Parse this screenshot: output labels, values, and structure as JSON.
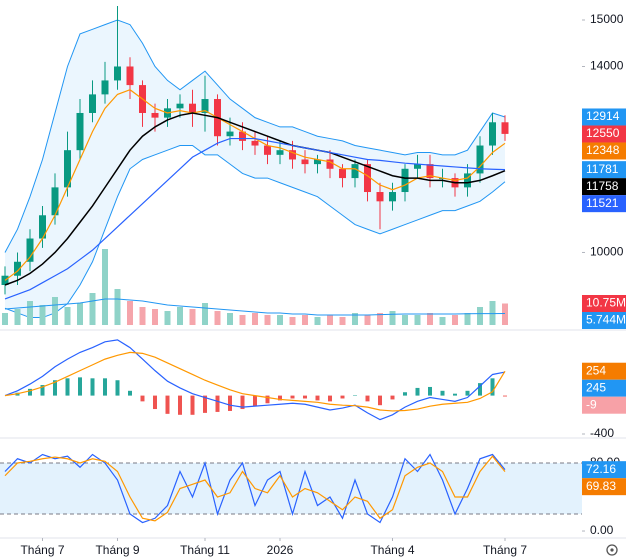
{
  "chart_data": [
    {
      "type": "candlestick",
      "ylim": [
        8440,
        15430
      ],
      "yticks": [
        10000,
        14000,
        15000
      ],
      "up_color": "#089981",
      "down_color": "#f23645",
      "open": [
        9300,
        9500,
        9800,
        10300,
        10800,
        11400,
        12200,
        13000,
        13400,
        13700,
        14000,
        13600,
        13000,
        12900,
        13100,
        13200,
        13000,
        13300,
        12500,
        12600,
        12400,
        12300,
        12100,
        12200,
        12000,
        11900,
        12000,
        11800,
        11600,
        11900,
        11300,
        11100,
        11300,
        11800,
        11900,
        11600,
        11600,
        11400,
        11700,
        12300,
        12800
      ],
      "high": [
        9700,
        10000,
        10500,
        11000,
        11700,
        12600,
        13300,
        13700,
        14100,
        15300,
        14200,
        13700,
        13200,
        13300,
        13400,
        13500,
        13800,
        13400,
        12900,
        12800,
        12600,
        12500,
        12400,
        12400,
        12200,
        12100,
        12200,
        11900,
        12000,
        12000,
        11500,
        11500,
        11900,
        12100,
        12100,
        11800,
        11700,
        11900,
        12500,
        13000,
        12950
      ],
      "low": [
        9100,
        9300,
        9600,
        10100,
        10600,
        11200,
        12000,
        12800,
        13200,
        13500,
        13300,
        12700,
        12600,
        12700,
        12900,
        12700,
        12600,
        12300,
        12300,
        12200,
        12100,
        11900,
        11900,
        11800,
        11700,
        11700,
        11600,
        11400,
        11400,
        11100,
        10500,
        10900,
        11100,
        11600,
        11400,
        11400,
        11200,
        11200,
        11500,
        12100,
        12400
      ],
      "close": [
        9500,
        9800,
        10300,
        10800,
        11400,
        12200,
        13000,
        13400,
        13700,
        14000,
        13600,
        13000,
        12900,
        13100,
        13200,
        13000,
        13300,
        12500,
        12600,
        12400,
        12300,
        12100,
        12200,
        12000,
        11900,
        12000,
        11800,
        11600,
        11900,
        11300,
        11100,
        11300,
        11800,
        11900,
        11600,
        11600,
        11400,
        11700,
        12300,
        12800,
        12550
      ],
      "band": {
        "color": "#2196f3",
        "fill": "#e3f2fd",
        "upper": [
          10000,
          10500,
          11200,
          12000,
          13000,
          14000,
          14700,
          14800,
          14900,
          15000,
          14900,
          14500,
          14000,
          13700,
          13500,
          13700,
          13900,
          13600,
          13300,
          13100,
          12900,
          12800,
          12700,
          12700,
          12600,
          12500,
          12450,
          12400,
          12300,
          12250,
          12200,
          12150,
          12100,
          12150,
          12150,
          12100,
          12100,
          12200,
          12600,
          13000,
          12914
        ],
        "lower": [
          8800,
          8700,
          8600,
          8600,
          8700,
          8900,
          9300,
          9800,
          10500,
          11200,
          11800,
          12000,
          12100,
          12200,
          12300,
          12300,
          12100,
          12100,
          11900,
          11700,
          11600,
          11600,
          11500,
          11400,
          11300,
          11200,
          11000,
          10800,
          10600,
          10500,
          10400,
          10500,
          10600,
          10700,
          10800,
          10900,
          10900,
          11000,
          11100,
          11300,
          11521
        ]
      },
      "series": [
        {
          "color": "#ff9800",
          "values": [
            9400,
            9600,
            9900,
            10300,
            10800,
            11400,
            12000,
            12600,
            13100,
            13400,
            13500,
            13300,
            13100,
            13000,
            13050,
            13000,
            13050,
            12900,
            12750,
            12600,
            12450,
            12300,
            12250,
            12150,
            12050,
            12000,
            11950,
            11800,
            11800,
            11650,
            11450,
            11350,
            11450,
            11600,
            11650,
            11600,
            11550,
            11600,
            11850,
            12150,
            12348
          ]
        },
        {
          "color": "#000000",
          "values": [
            9300,
            9400,
            9550,
            9750,
            10000,
            10300,
            10650,
            11000,
            11400,
            11800,
            12200,
            12500,
            12700,
            12850,
            12950,
            13000,
            12950,
            12900,
            12800,
            12700,
            12600,
            12500,
            12400,
            12300,
            12250,
            12200,
            12150,
            12050,
            11950,
            11850,
            11750,
            11650,
            11600,
            11600,
            11550,
            11550,
            11500,
            11500,
            11550,
            11650,
            11758
          ]
        },
        {
          "color": "#2962ff",
          "values": [
            9000,
            9100,
            9200,
            9350,
            9500,
            9650,
            9850,
            10050,
            10300,
            10550,
            10800,
            11050,
            11300,
            11550,
            11800,
            12050,
            12200,
            12350,
            12450,
            12450,
            12450,
            12400,
            12350,
            12300,
            12250,
            12200,
            12150,
            12100,
            12050,
            12000,
            11980,
            11950,
            11920,
            11900,
            11880,
            11860,
            11840,
            11820,
            11800,
            11790,
            11781
          ]
        }
      ],
      "last_labels": [
        {
          "value": 12914,
          "color": "#2196f3"
        },
        {
          "value": 12550,
          "color": "#f23645"
        },
        {
          "value": 12348,
          "color": "#f57c00"
        },
        {
          "value": 11781,
          "color": "#2196f3"
        },
        {
          "value": 11758,
          "color": "#000000"
        },
        {
          "value": 11521,
          "color": "#2962ff"
        }
      ],
      "volume": {
        "ylim": [
          0,
          40
        ],
        "up_color": "#8fd3c8",
        "down_color": "#f5a5ab",
        "values": [
          6,
          8,
          12,
          10,
          14,
          9,
          11,
          16,
          38,
          18,
          12,
          9,
          8,
          7,
          9,
          8,
          11,
          7,
          6,
          5,
          6,
          5,
          5,
          4,
          5,
          4,
          5,
          4,
          6,
          5,
          6,
          7,
          5,
          5,
          6,
          4,
          5,
          6,
          9,
          12,
          10.75
        ],
        "ma": {
          "color": "#2196f3",
          "values": [
            8,
            8.5,
            9,
            9.5,
            10,
            10.5,
            11,
            12,
            13,
            13,
            12.5,
            12,
            11,
            10,
            9.5,
            9,
            8.5,
            8,
            7.5,
            7,
            6.5,
            6,
            6,
            5.5,
            5.5,
            5,
            5,
            5,
            5,
            5,
            5.2,
            5.4,
            5.5,
            5.5,
            5.5,
            5.5,
            5.5,
            5.6,
            5.7,
            5.7,
            5.744
          ]
        },
        "last_labels": [
          {
            "value": 10.75,
            "label": "10.75M",
            "color": "#f23645"
          },
          {
            "value": 5.744,
            "label": "5.744M",
            "color": "#2196f3"
          }
        ]
      }
    },
    {
      "type": "macd",
      "ylim": [
        -400,
        600
      ],
      "yticks": [
        -400
      ],
      "histogram": {
        "up_color": "#26a69a",
        "down_color": "#ef5350",
        "values": [
          0,
          30,
          70,
          110,
          160,
          180,
          190,
          180,
          180,
          160,
          50,
          -60,
          -140,
          -190,
          -200,
          -200,
          -180,
          -170,
          -160,
          -140,
          -110,
          -80,
          -50,
          -30,
          -30,
          -50,
          -60,
          -30,
          5,
          -60,
          -100,
          -40,
          35,
          80,
          90,
          50,
          20,
          50,
          130,
          180,
          -9
        ]
      },
      "series": [
        {
          "color": "#2962ff",
          "values": [
            0,
            50,
            120,
            200,
            300,
            380,
            450,
            500,
            560,
            580,
            500,
            380,
            260,
            150,
            80,
            20,
            -20,
            -60,
            -100,
            -120,
            -110,
            -100,
            -90,
            -80,
            -90,
            -120,
            -150,
            -130,
            -100,
            -180,
            -250,
            -200,
            -120,
            -60,
            -20,
            -40,
            -60,
            -20,
            100,
            220,
            245
          ]
        },
        {
          "color": "#ff9800",
          "values": [
            0,
            20,
            50,
            90,
            140,
            200,
            260,
            320,
            380,
            420,
            450,
            440,
            400,
            340,
            280,
            220,
            160,
            110,
            60,
            20,
            0,
            -20,
            -40,
            -50,
            -60,
            -70,
            -90,
            -100,
            -105,
            -120,
            -150,
            -160,
            -155,
            -140,
            -110,
            -90,
            -80,
            -70,
            -30,
            40,
            254
          ]
        }
      ],
      "last_labels": [
        {
          "value": 254,
          "color": "#f57c00"
        },
        {
          "value": 245,
          "color": "#2196f3"
        },
        {
          "value": -9,
          "color": "#f7a1a7"
        }
      ]
    },
    {
      "type": "line",
      "ylim": [
        -8.2,
        104.7
      ],
      "yticks": [
        {
          "value": 80,
          "label": "80.00"
        },
        {
          "value": 0,
          "label": "0.00"
        }
      ],
      "band": {
        "values": [
          20,
          80
        ],
        "fill": "#e3f2fd"
      },
      "categories": [
        null,
        null,
        null,
        "Tháng 7",
        null,
        null,
        null,
        null,
        null,
        "Tháng 9",
        null,
        null,
        null,
        null,
        null,
        null,
        "Tháng 11",
        null,
        null,
        null,
        null,
        null,
        "2026",
        null,
        null,
        null,
        null,
        null,
        null,
        null,
        null,
        "Tháng 4",
        null,
        null,
        null,
        null,
        null,
        null,
        null,
        null,
        "Tháng 7"
      ],
      "series": [
        {
          "color": "#2962ff",
          "values": [
            70,
            85,
            80,
            90,
            85,
            88,
            75,
            90,
            80,
            60,
            20,
            10,
            15,
            30,
            70,
            40,
            80,
            20,
            60,
            80,
            30,
            60,
            70,
            20,
            70,
            30,
            40,
            15,
            60,
            20,
            10,
            40,
            85,
            70,
            90,
            60,
            20,
            50,
            85,
            90,
            72.16
          ]
        },
        {
          "color": "#ff9800",
          "values": [
            65,
            80,
            82,
            85,
            87,
            85,
            80,
            85,
            82,
            70,
            40,
            15,
            12,
            22,
            50,
            55,
            60,
            40,
            45,
            70,
            50,
            45,
            65,
            40,
            50,
            45,
            35,
            25,
            40,
            35,
            15,
            25,
            65,
            75,
            80,
            70,
            40,
            40,
            70,
            88,
            69.83
          ]
        }
      ],
      "last_labels": [
        {
          "value": 72.16,
          "color": "#2196f3"
        },
        {
          "value": 69.83,
          "color": "#f57c00"
        }
      ]
    }
  ]
}
